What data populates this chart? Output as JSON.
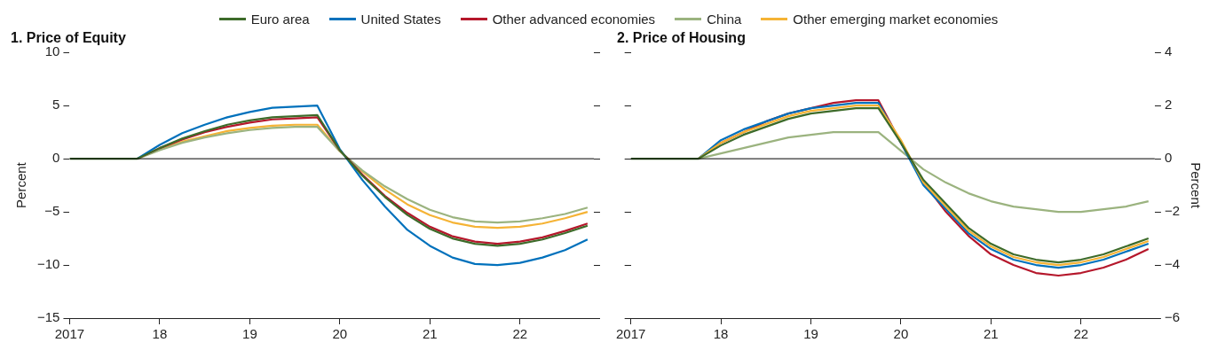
{
  "chart_data": [
    {
      "type": "line",
      "title": "1. Price of Equity",
      "ylabel": "Percent",
      "legend": "top",
      "marker": "none",
      "line_style": "solid",
      "grid": false,
      "x": [
        2017,
        2017.25,
        2017.5,
        2017.75,
        2018,
        2018.25,
        2018.5,
        2018.75,
        2019,
        2019.25,
        2019.5,
        2019.75,
        2020,
        2020.25,
        2020.5,
        2020.75,
        2021,
        2021.25,
        2021.5,
        2021.75,
        2022,
        2022.25,
        2022.5,
        2022.75
      ],
      "xlim": [
        2017,
        2022.82
      ],
      "xticks": [
        {
          "value": 2017,
          "label": "2017"
        },
        {
          "value": 2018,
          "label": "18"
        },
        {
          "value": 2019,
          "label": "19"
        },
        {
          "value": 2020,
          "label": "20"
        },
        {
          "value": 2021,
          "label": "21"
        },
        {
          "value": 2022,
          "label": "22"
        }
      ],
      "ylim": [
        -15,
        10
      ],
      "yticks": [
        {
          "value": -15,
          "label": "−15"
        },
        {
          "value": -10,
          "label": "−10"
        },
        {
          "value": -5,
          "label": "−5"
        },
        0,
        5,
        10
      ],
      "ref_lines": [
        {
          "axis": "y",
          "value": 0,
          "color": "#000000"
        }
      ],
      "series": [
        {
          "name": "Euro area",
          "color": "#3d6b2a",
          "values": [
            0,
            0,
            0,
            0,
            1.0,
            1.9,
            2.6,
            3.2,
            3.6,
            3.9,
            4.0,
            4.1,
            0.8,
            -1.6,
            -3.6,
            -5.3,
            -6.6,
            -7.5,
            -8.0,
            -8.2,
            -8.0,
            -7.6,
            -7.0,
            -6.3
          ]
        },
        {
          "name": "United States",
          "color": "#0071bc",
          "values": [
            null,
            null,
            null,
            0,
            1.3,
            2.4,
            3.2,
            3.9,
            4.4,
            4.8,
            4.9,
            5.0,
            0.9,
            -2.0,
            -4.5,
            -6.7,
            -8.2,
            -9.3,
            -9.9,
            -10.0,
            -9.8,
            -9.3,
            -8.6,
            -7.6
          ]
        },
        {
          "name": "Other advanced economies",
          "color": "#b5172b",
          "values": [
            null,
            null,
            null,
            0,
            1.0,
            1.8,
            2.5,
            3.0,
            3.4,
            3.7,
            3.8,
            3.9,
            0.8,
            -1.5,
            -3.5,
            -5.1,
            -6.4,
            -7.3,
            -7.8,
            -8.0,
            -7.8,
            -7.4,
            -6.8,
            -6.1
          ]
        },
        {
          "name": "China",
          "color": "#9bb37f",
          "values": [
            null,
            null,
            null,
            0,
            0.8,
            1.5,
            2.0,
            2.4,
            2.7,
            2.9,
            3.0,
            3.0,
            0.7,
            -1.1,
            -2.6,
            -3.8,
            -4.8,
            -5.5,
            -5.9,
            -6.0,
            -5.9,
            -5.6,
            -5.2,
            -4.6
          ]
        },
        {
          "name": "Other emerging market economies",
          "color": "#f5b335",
          "values": [
            null,
            null,
            null,
            0,
            0.9,
            1.6,
            2.1,
            2.6,
            2.9,
            3.1,
            3.2,
            3.2,
            0.7,
            -1.2,
            -2.9,
            -4.3,
            -5.3,
            -6.0,
            -6.4,
            -6.5,
            -6.4,
            -6.1,
            -5.6,
            -5.0
          ]
        }
      ]
    },
    {
      "type": "line",
      "title": "2. Price of Housing",
      "y2label": "Percent",
      "marker": "none",
      "line_style": "solid",
      "grid": false,
      "x": [
        2017,
        2017.25,
        2017.5,
        2017.75,
        2018,
        2018.25,
        2018.5,
        2018.75,
        2019,
        2019.25,
        2019.5,
        2019.75,
        2020,
        2020.25,
        2020.5,
        2020.75,
        2021,
        2021.25,
        2021.5,
        2021.75,
        2022,
        2022.25,
        2022.5,
        2022.75
      ],
      "xlim": [
        2017,
        2022.82
      ],
      "xticks": [
        {
          "value": 2017,
          "label": "2017"
        },
        {
          "value": 2018,
          "label": "18"
        },
        {
          "value": 2019,
          "label": "19"
        },
        {
          "value": 2020,
          "label": "20"
        },
        {
          "value": 2021,
          "label": "21"
        },
        {
          "value": 2022,
          "label": "22"
        }
      ],
      "y2lim": [
        -6,
        4
      ],
      "y2ticks": [
        {
          "value": -6,
          "label": "−6"
        },
        {
          "value": -4,
          "label": "−4"
        },
        {
          "value": -2,
          "label": "−2"
        },
        0,
        2,
        4
      ],
      "ref_lines": [
        {
          "axis": "y2",
          "value": 0,
          "color": "#000000"
        }
      ],
      "series": [
        {
          "color": "#3d6b2a",
          "axis": "y2",
          "values": [
            0,
            0,
            0,
            0,
            0.5,
            0.9,
            1.2,
            1.5,
            1.7,
            1.8,
            1.9,
            1.9,
            0.6,
            -0.8,
            -1.7,
            -2.6,
            -3.2,
            -3.6,
            -3.8,
            -3.9,
            -3.8,
            -3.6,
            -3.3,
            -3.0
          ]
        },
        {
          "color": "#f5b335",
          "axis": "y2",
          "values": [
            null,
            null,
            null,
            0,
            0.6,
            1.0,
            1.3,
            1.6,
            1.8,
            1.9,
            2.0,
            2.0,
            0.7,
            -0.9,
            -1.8,
            -2.7,
            -3.3,
            -3.7,
            -3.9,
            -4.0,
            -3.9,
            -3.7,
            -3.4,
            -3.1
          ]
        },
        {
          "color": "#0071bc",
          "axis": "y2",
          "values": [
            null,
            null,
            null,
            0,
            0.7,
            1.1,
            1.4,
            1.7,
            1.9,
            2.0,
            2.1,
            2.1,
            0.6,
            -1.0,
            -1.9,
            -2.8,
            -3.4,
            -3.8,
            -4.0,
            -4.1,
            -4.0,
            -3.8,
            -3.5,
            -3.2
          ]
        },
        {
          "color": "#b5172b",
          "axis": "y2",
          "values": [
            null,
            null,
            null,
            0,
            0.6,
            1.0,
            1.4,
            1.7,
            1.9,
            2.1,
            2.2,
            2.2,
            0.6,
            -0.9,
            -2.0,
            -2.9,
            -3.6,
            -4.0,
            -4.3,
            -4.4,
            -4.3,
            -4.1,
            -3.8,
            -3.4
          ]
        },
        {
          "color": "#9bb37f",
          "axis": "y2",
          "values": [
            null,
            null,
            null,
            0,
            0.2,
            0.4,
            0.6,
            0.8,
            0.9,
            1.0,
            1.0,
            1.0,
            0.3,
            -0.4,
            -0.9,
            -1.3,
            -1.6,
            -1.8,
            -1.9,
            -2.0,
            -2.0,
            -1.9,
            -1.8,
            -1.6
          ]
        }
      ]
    }
  ]
}
